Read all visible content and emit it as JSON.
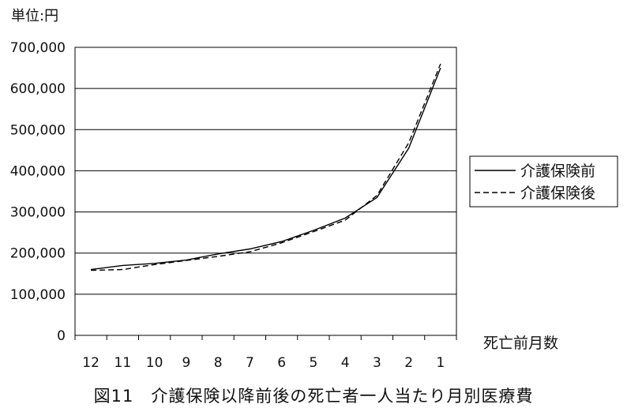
{
  "unit_label": "単位:円",
  "caption": "図11　介護保険以降前後の死亡者一人当たり月別医療費",
  "chart_data": {
    "type": "line",
    "title": "",
    "xlabel": "死亡前月数",
    "ylabel": "",
    "categories": [
      "12",
      "11",
      "10",
      "9",
      "8",
      "7",
      "6",
      "5",
      "4",
      "3",
      "2",
      "1"
    ],
    "ylim": [
      0,
      700000
    ],
    "yticks": [
      0,
      100000,
      200000,
      300000,
      400000,
      500000,
      600000,
      700000
    ],
    "ytick_labels": [
      "0",
      "100,000",
      "200,000",
      "300,000",
      "400,000",
      "500,000",
      "600,000",
      "700,000"
    ],
    "grid": true,
    "legend_position": "right",
    "series": [
      {
        "name": "介護保険前",
        "style": "solid",
        "color": "#000000",
        "values": [
          160000,
          170000,
          175000,
          183000,
          198000,
          210000,
          228000,
          255000,
          285000,
          335000,
          455000,
          650000
        ]
      },
      {
        "name": "介護保険後",
        "style": "dashed",
        "color": "#000000",
        "values": [
          158000,
          160000,
          172000,
          182000,
          192000,
          203000,
          225000,
          252000,
          280000,
          340000,
          468000,
          660000
        ]
      }
    ]
  }
}
